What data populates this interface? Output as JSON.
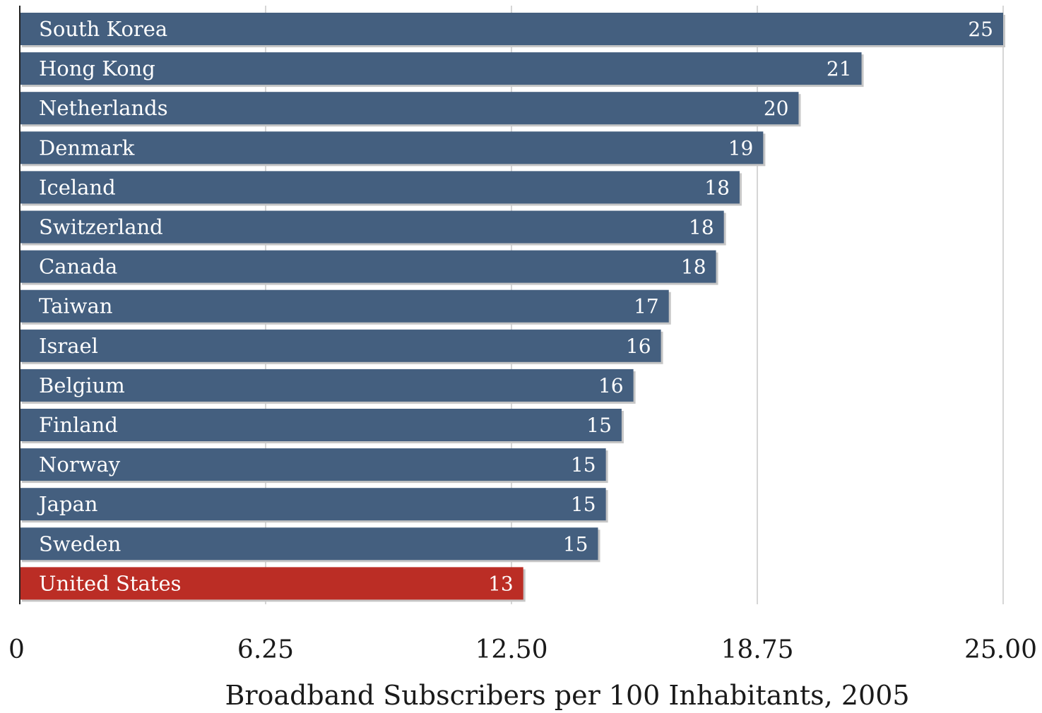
{
  "chart_data": {
    "type": "bar",
    "orientation": "horizontal",
    "categories": [
      "South Korea",
      "Hong Kong",
      "Netherlands",
      "Denmark",
      "Iceland",
      "Switzerland",
      "Canada",
      "Taiwan",
      "Israel",
      "Belgium",
      "Finland",
      "Norway",
      "Japan",
      "Sweden",
      "United States"
    ],
    "values": [
      25.0,
      21.4,
      19.8,
      18.9,
      18.3,
      17.9,
      17.7,
      16.5,
      16.3,
      15.6,
      15.3,
      14.9,
      14.9,
      14.7,
      12.8
    ],
    "value_labels": [
      "25",
      "21",
      "20",
      "19",
      "18",
      "18",
      "18",
      "17",
      "16",
      "16",
      "15",
      "15",
      "15",
      "15",
      "13"
    ],
    "xlabel": "Broadband Subscribers per 100 Inhabitants, 2005",
    "ylabel": "",
    "xlim": [
      0,
      25
    ],
    "xticks": [
      0,
      6.25,
      12.5,
      18.75,
      25
    ],
    "xtick_labels": [
      "0",
      "6.25",
      "12.50",
      "18.75",
      "25.00"
    ],
    "grid": "vertical",
    "legend": "none",
    "highlight_category": "United States"
  },
  "colors": {
    "bar": "#445f7f",
    "highlight": "#bb2d25",
    "shadow": "#c6c6c6",
    "gridline": "#c8c8c8",
    "axis": "#222222",
    "bar_text": "#ffffff",
    "text": "#1a1a1a"
  }
}
